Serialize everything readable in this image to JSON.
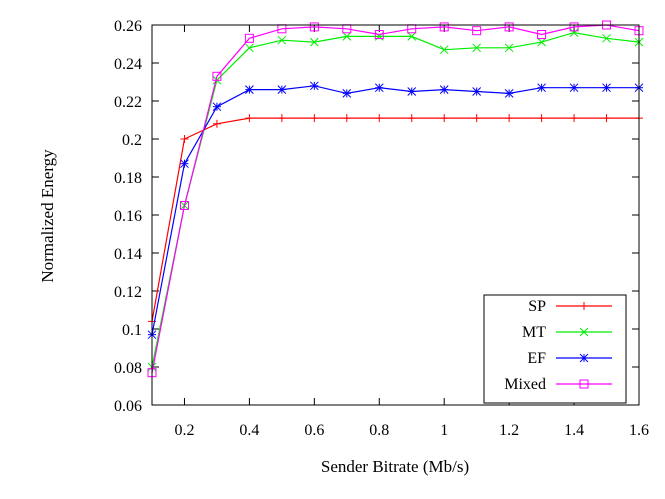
{
  "chart_data": {
    "type": "line",
    "title": "",
    "xlabel": "Sender Bitrate (Mb/s)",
    "ylabel": "Normalized Energy",
    "xlim": [
      0.1,
      1.6
    ],
    "ylim": [
      0.06,
      0.26
    ],
    "xticks": [
      0.2,
      0.4,
      0.6,
      0.8,
      1,
      1.2,
      1.4,
      1.6
    ],
    "xtick_labels": [
      "0.2",
      "0.4",
      "0.6",
      "0.8",
      "1",
      "1.2",
      "1.4",
      "1.6"
    ],
    "yticks": [
      0.06,
      0.08,
      0.1,
      0.12,
      0.14,
      0.16,
      0.18,
      0.2,
      0.22,
      0.24,
      0.26
    ],
    "ytick_labels": [
      "0.06",
      "0.08",
      "0.1",
      "0.12",
      "0.14",
      "0.16",
      "0.18",
      "0.2",
      "0.22",
      "0.24",
      "0.26"
    ],
    "grid": false,
    "legend_position": "bottom-right",
    "x": [
      0.1,
      0.2,
      0.3,
      0.4,
      0.5,
      0.6,
      0.7,
      0.8,
      0.9,
      1.0,
      1.1,
      1.2,
      1.3,
      1.4,
      1.5,
      1.6
    ],
    "series": [
      {
        "name": "SP",
        "color": "#ff0000",
        "marker": "plus",
        "values": [
          0.104,
          0.2,
          0.208,
          0.211,
          0.211,
          0.211,
          0.211,
          0.211,
          0.211,
          0.211,
          0.211,
          0.211,
          0.211,
          0.211,
          0.211,
          0.211
        ]
      },
      {
        "name": "MT",
        "color": "#00ee00",
        "marker": "cross",
        "values": [
          0.08,
          0.165,
          0.231,
          0.248,
          0.252,
          0.251,
          0.254,
          0.254,
          0.254,
          0.247,
          0.248,
          0.248,
          0.251,
          0.256,
          0.253,
          0.251
        ]
      },
      {
        "name": "EF",
        "color": "#0000ff",
        "marker": "star",
        "values": [
          0.097,
          0.187,
          0.217,
          0.226,
          0.226,
          0.228,
          0.224,
          0.227,
          0.225,
          0.226,
          0.225,
          0.224,
          0.227,
          0.227,
          0.227,
          0.227
        ]
      },
      {
        "name": "Mixed",
        "color": "#ff00ff",
        "marker": "square",
        "values": [
          0.077,
          0.165,
          0.233,
          0.253,
          0.258,
          0.259,
          0.258,
          0.255,
          0.258,
          0.259,
          0.257,
          0.259,
          0.255,
          0.259,
          0.26,
          0.257
        ]
      }
    ]
  }
}
